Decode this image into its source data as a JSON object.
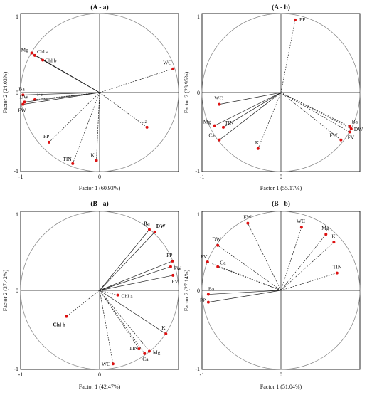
{
  "colors": {
    "point": "#dd1111",
    "circle": "#8a8a8a",
    "vector": "#222222",
    "axis": "#111111"
  },
  "chart_data": [
    {
      "type": "scatter",
      "title": "(A - a)",
      "xlabel": "Factor 1 (60.93%)",
      "ylabel": "Factor 2 (24.03%)",
      "xlim": [
        -1,
        1
      ],
      "ylim": [
        -1,
        1
      ],
      "ticks": {
        "xmin": "-1",
        "x0": "0",
        "ymax": "1",
        "y0": "0",
        "ymin": "-1"
      },
      "points": [
        {
          "name": "Mg",
          "x": -0.86,
          "y": 0.5,
          "bold": false,
          "style": "solid"
        },
        {
          "name": "Chl a",
          "x": -0.82,
          "y": 0.47,
          "bold": false,
          "style": "solid"
        },
        {
          "name": "Chl b",
          "x": -0.72,
          "y": 0.41,
          "bold": false,
          "style": "solid"
        },
        {
          "name": "WC",
          "x": 0.93,
          "y": 0.3,
          "bold": false,
          "style": "dashed"
        },
        {
          "name": "Ba",
          "x": -0.97,
          "y": -0.03,
          "bold": false,
          "style": "solid"
        },
        {
          "name": "FV",
          "x": -0.82,
          "y": -0.09,
          "bold": false,
          "style": "dashed"
        },
        {
          "name": "DW",
          "x": -0.95,
          "y": -0.12,
          "bold": false,
          "style": "solid"
        },
        {
          "name": "FW",
          "x": -0.97,
          "y": -0.15,
          "bold": false,
          "style": "solid"
        },
        {
          "name": "Ca",
          "x": 0.6,
          "y": -0.44,
          "bold": false,
          "style": "dashed"
        },
        {
          "name": "PP",
          "x": -0.64,
          "y": -0.63,
          "bold": false,
          "style": "dashed"
        },
        {
          "name": "TIN",
          "x": -0.34,
          "y": -0.9,
          "bold": false,
          "style": "dashed"
        },
        {
          "name": "K",
          "x": -0.04,
          "y": -0.86,
          "bold": false,
          "style": "dashed"
        }
      ]
    },
    {
      "type": "scatter",
      "title": "(A - b)",
      "xlabel": "Factor 1 (55.17%)",
      "ylabel": "Factor 2 (28.95%)",
      "xlim": [
        -1,
        1
      ],
      "ylim": [
        -1,
        1
      ],
      "ticks": {
        "xmin": "-1",
        "x0": "0",
        "ymax": "1",
        "y0": "0",
        "ymin": "-1"
      },
      "points": [
        {
          "name": "PP",
          "x": 0.18,
          "y": 0.92,
          "bold": false,
          "style": "dashed"
        },
        {
          "name": "WC",
          "x": -0.78,
          "y": -0.15,
          "bold": false,
          "style": "solid"
        },
        {
          "name": "TIN",
          "x": -0.73,
          "y": -0.44,
          "bold": false,
          "style": "solid"
        },
        {
          "name": "Mg",
          "x": -0.84,
          "y": -0.42,
          "bold": false,
          "style": "solid"
        },
        {
          "name": "Ca",
          "x": -0.78,
          "y": -0.6,
          "bold": false,
          "style": "solid"
        },
        {
          "name": "K",
          "x": -0.29,
          "y": -0.71,
          "bold": false,
          "style": "dashed"
        },
        {
          "name": "Ba",
          "x": 0.87,
          "y": -0.43,
          "bold": false,
          "style": "dashed"
        },
        {
          "name": "DW",
          "x": 0.89,
          "y": -0.46,
          "bold": false,
          "style": "dashed"
        },
        {
          "name": "FV",
          "x": 0.87,
          "y": -0.5,
          "bold": false,
          "style": "dashed"
        },
        {
          "name": "FW",
          "x": 0.76,
          "y": -0.6,
          "bold": false,
          "style": "dashed"
        }
      ]
    },
    {
      "type": "scatter",
      "title": "(B - a)",
      "xlabel": "Factor 1 (42.47%)",
      "ylabel": "Factor 2 (37.42%)",
      "xlim": [
        -1,
        1
      ],
      "ylim": [
        -1,
        1
      ],
      "ticks": {
        "xmin": "-1",
        "x0": "0",
        "ymax": "1",
        "y0": "0",
        "ymin": "-1"
      },
      "points": [
        {
          "name": "Ba",
          "x": 0.63,
          "y": 0.77,
          "bold": true,
          "style": "solid"
        },
        {
          "name": "DW",
          "x": 0.7,
          "y": 0.74,
          "bold": true,
          "style": "solid"
        },
        {
          "name": "PP",
          "x": 0.92,
          "y": 0.37,
          "bold": false,
          "style": "solid"
        },
        {
          "name": "FW",
          "x": 0.9,
          "y": 0.3,
          "bold": false,
          "style": "solid"
        },
        {
          "name": "FV",
          "x": 0.93,
          "y": 0.19,
          "bold": false,
          "style": "solid"
        },
        {
          "name": "Chl a",
          "x": 0.23,
          "y": -0.06,
          "bold": false,
          "style": "dashed"
        },
        {
          "name": "Chl b",
          "x": -0.42,
          "y": -0.33,
          "bold": true,
          "style": "dashed"
        },
        {
          "name": "K",
          "x": 0.84,
          "y": -0.55,
          "bold": false,
          "style": "solid"
        },
        {
          "name": "TIN",
          "x": 0.5,
          "y": -0.74,
          "bold": false,
          "style": "dashed"
        },
        {
          "name": "Mg",
          "x": 0.63,
          "y": -0.77,
          "bold": false,
          "style": "dashed"
        },
        {
          "name": "Ca",
          "x": 0.57,
          "y": -0.8,
          "bold": false,
          "style": "dashed"
        },
        {
          "name": "WC",
          "x": 0.17,
          "y": -0.93,
          "bold": false,
          "style": "dashed"
        }
      ]
    },
    {
      "type": "scatter",
      "title": "(B - b)",
      "xlabel": "Factor 1 (51.04%)",
      "ylabel": "Factor 2 (27.14%)",
      "xlim": [
        -1,
        1
      ],
      "ylim": [
        -1,
        1
      ],
      "ticks": {
        "xmin": "-1",
        "x0": "0",
        "ymax": "1",
        "y0": "0",
        "ymin": "-1"
      },
      "points": [
        {
          "name": "FW",
          "x": -0.42,
          "y": 0.85,
          "bold": false,
          "style": "dashed"
        },
        {
          "name": "WC",
          "x": 0.26,
          "y": 0.8,
          "bold": false,
          "style": "dashed"
        },
        {
          "name": "Mg",
          "x": 0.57,
          "y": 0.71,
          "bold": false,
          "style": "dashed"
        },
        {
          "name": "K",
          "x": 0.67,
          "y": 0.61,
          "bold": false,
          "style": "dashed"
        },
        {
          "name": "DW",
          "x": -0.8,
          "y": 0.57,
          "bold": false,
          "style": "dashed"
        },
        {
          "name": "FV",
          "x": -0.93,
          "y": 0.36,
          "bold": false,
          "style": "dashed"
        },
        {
          "name": "Ca",
          "x": -0.8,
          "y": 0.3,
          "bold": false,
          "style": "dashed"
        },
        {
          "name": "TIN",
          "x": 0.71,
          "y": 0.22,
          "bold": false,
          "style": "dashed"
        },
        {
          "name": "Ba",
          "x": -0.92,
          "y": -0.05,
          "bold": false,
          "style": "solid"
        },
        {
          "name": "PP",
          "x": -0.92,
          "y": -0.15,
          "bold": false,
          "style": "solid"
        }
      ]
    }
  ]
}
